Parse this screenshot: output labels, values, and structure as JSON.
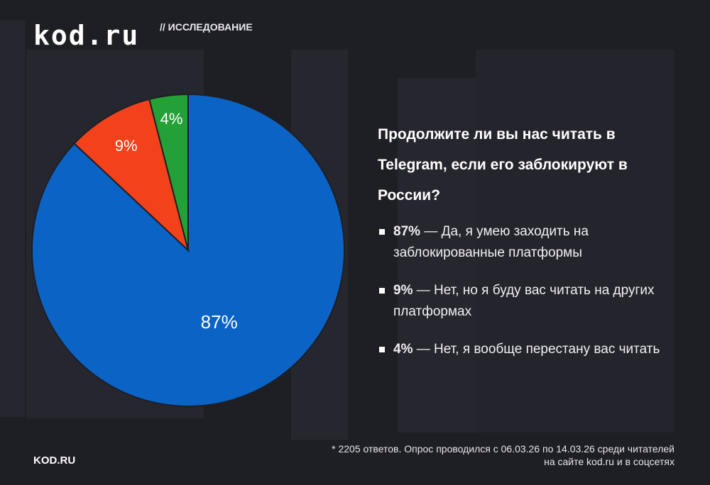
{
  "header": {
    "logo": "kod.ru",
    "tag": "// ИССЛЕДОВАНИЕ"
  },
  "chart_data": {
    "type": "pie",
    "title": "Продолжите ли вы нас читать в Telegram, если его заблокируют в России?",
    "start": "12 o'clock, clockwise",
    "slices": [
      {
        "label": "87%",
        "value": 87,
        "color": "#0b63c6",
        "text": "— Да, я умею заходить на заблокированные платформы"
      },
      {
        "label": "9%",
        "value": 9,
        "color": "#f2411b",
        "text": "— Нет, но я буду вас читать на других платформах"
      },
      {
        "label": "4%",
        "value": 4,
        "color": "#23a036",
        "text": "— Нет, я вообще перестану вас читать"
      }
    ]
  },
  "footer": {
    "site": "KOD.RU",
    "note_line1": "* 2205 ответов. Опрос проводился с 06.03.26 по 14.03.26 среди читателей",
    "note_line2": "на сайте kod.ru и в соцсетях"
  }
}
